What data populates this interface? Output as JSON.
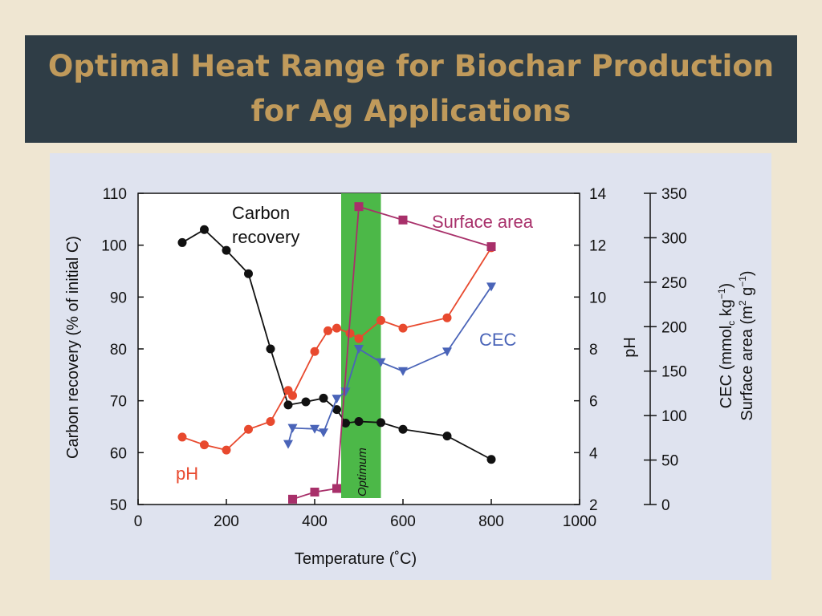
{
  "slide": {
    "title_line1": "Optimal Heat Range for Biochar Production",
    "title_line2": "for Ag Applications"
  },
  "colors": {
    "background": "#efe6d2",
    "title_bar": "#2f3d46",
    "title_text": "#c09a5b",
    "carbon": "#111111",
    "ph": "#e8492e",
    "cec": "#4a64b8",
    "surface": "#a8306a",
    "optimum": "#4cb848"
  },
  "chart_data": {
    "type": "line",
    "xlabel": "Temperature (˚C)",
    "xlim": [
      0,
      1000
    ],
    "xticks": [
      0,
      200,
      400,
      600,
      800,
      1000
    ],
    "y_left": {
      "label": "Carbon recovery (% of initial C)",
      "lim": [
        50,
        110
      ],
      "ticks": [
        50,
        60,
        70,
        80,
        90,
        100,
        110
      ]
    },
    "y_right1": {
      "label": "pH",
      "lim": [
        2,
        14
      ],
      "ticks": [
        2,
        4,
        6,
        8,
        10,
        12,
        14
      ]
    },
    "y_right2": {
      "label_line1": "CEC (mmol",
      "label_sub": "c",
      "label_line1b": " kg",
      "label_sup1": "−1",
      "label_line1c": ")",
      "label_line2": "Surface area (m",
      "label_sup2": "2",
      "label_line2b": " g",
      "label_sup3": "−1",
      "label_line2c": ")",
      "lim": [
        0,
        350
      ],
      "ticks": [
        0,
        50,
        100,
        150,
        200,
        250,
        300,
        350
      ]
    },
    "optimum_band": {
      "x": [
        460,
        550
      ],
      "label": "Optimum"
    },
    "series": [
      {
        "name": "Carbon recovery",
        "label_line1": "Carbon",
        "label_line2": "recovery",
        "axis": "left",
        "marker": "circle",
        "x": [
          100,
          150,
          200,
          250,
          300,
          340,
          380,
          420,
          450,
          470,
          500,
          550,
          600,
          700,
          800
        ],
        "y": [
          100.5,
          103,
          99,
          94.5,
          80,
          69.2,
          69.8,
          70.5,
          68.3,
          65.7,
          66,
          65.8,
          64.5,
          63.2,
          58.7
        ]
      },
      {
        "name": "pH",
        "axis": "right1",
        "marker": "circle",
        "x": [
          100,
          150,
          200,
          250,
          300,
          340,
          350,
          400,
          430,
          450,
          480,
          500,
          550,
          600,
          700,
          800
        ],
        "y": [
          4.6,
          4.3,
          4.1,
          4.9,
          5.2,
          6.4,
          6.2,
          7.9,
          8.7,
          8.8,
          8.6,
          8.4,
          9.1,
          8.8,
          9.2,
          11.9
        ]
      },
      {
        "name": "CEC",
        "axis": "right2",
        "marker": "triangle-down",
        "x": [
          340,
          350,
          400,
          420,
          450,
          470,
          500,
          550,
          600,
          700,
          800
        ],
        "y": [
          68,
          86,
          85,
          81,
          119,
          127,
          175,
          160,
          150,
          172,
          245
        ]
      },
      {
        "name": "Surface area",
        "axis": "right2",
        "marker": "square",
        "x": [
          350,
          400,
          450,
          500,
          600,
          800
        ],
        "y": [
          6,
          14,
          18,
          335,
          320,
          290
        ]
      }
    ],
    "annotations": {
      "ph_label": "pH",
      "cec_label": "CEC",
      "surface_label": "Surface area"
    },
    "grid": false,
    "legend": "inline labels"
  }
}
